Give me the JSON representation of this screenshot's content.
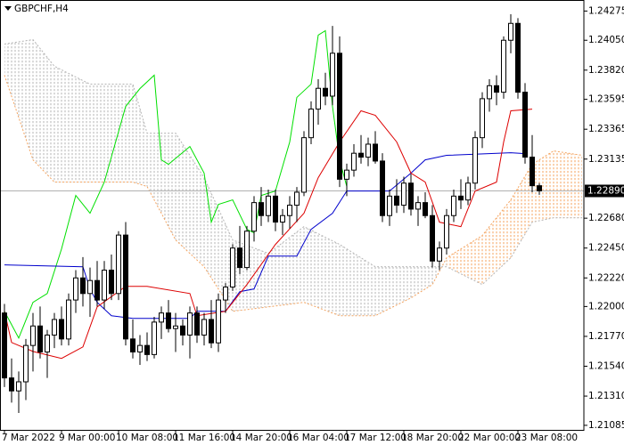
{
  "chart_data": {
    "type": "candlestick",
    "title": "GBPCHF,H4",
    "xlim": [
      -0.625,
      81.25
    ],
    "ylim": [
      1.2105,
      1.2436
    ],
    "xticks": [
      {
        "value": 0,
        "label": "7 Mar 2022"
      },
      {
        "value": 8,
        "label": "9 Mar 00:00"
      },
      {
        "value": 16,
        "label": "10 Mar 08:00"
      },
      {
        "value": 24,
        "label": "11 Mar 16:00"
      },
      {
        "value": 32,
        "label": "14 Mar 20:00"
      },
      {
        "value": 40,
        "label": "16 Mar 04:00"
      },
      {
        "value": 48,
        "label": "17 Mar 12:00"
      },
      {
        "value": 56,
        "label": "18 Mar 20:00"
      },
      {
        "value": 64,
        "label": "22 Mar 00:00"
      },
      {
        "value": 72,
        "label": "23 Mar 08:00"
      }
    ],
    "yticks": [
      1.24275,
      {
        "value": 1.2405,
        "label": "1.24050"
      },
      {
        "value": 1.2382,
        "label": "1.23820"
      },
      1.23595,
      1.23365,
      1.23135,
      {
        "value": 1.2268,
        "label": "1.22680"
      },
      {
        "value": 1.2245,
        "label": "1.22450"
      },
      {
        "value": 1.2222,
        "label": "1.22220"
      },
      {
        "value": 1.22,
        "label": "1.22000"
      },
      {
        "value": 1.2177,
        "label": "1.21770"
      },
      {
        "value": 1.2154,
        "label": "1.21540"
      },
      {
        "value": 1.2131,
        "label": "1.21310"
      },
      1.21085
    ],
    "last_price": {
      "value": 1.2289,
      "label": "1.22890"
    },
    "bull_color": "#ffffff",
    "bear_color": "#000000",
    "open": [
      1.2195,
      1.2145,
      1.2135,
      1.2142,
      1.217,
      1.2185,
      1.2165,
      1.2178,
      1.219,
      1.2175,
      1.2205,
      1.2222,
      1.221,
      1.222,
      1.2205,
      1.2228,
      1.221,
      1.2255,
      1.2175,
      1.2165,
      1.217,
      1.2163,
      1.2188,
      1.2195,
      1.2183,
      1.2185,
      1.2178,
      1.2195,
      1.2178,
      1.219,
      1.2172,
      1.2205,
      1.2215,
      1.2245,
      1.223,
      1.2258,
      1.228,
      1.227,
      1.2285,
      1.2265,
      1.227,
      1.2278,
      1.2288,
      1.233,
      1.2352,
      1.2368,
      1.2362,
      1.2395,
      1.2298,
      1.2305,
      1.2318,
      1.2315,
      1.2325,
      1.2312,
      1.227,
      1.2285,
      1.2278,
      1.2295,
      1.2275,
      1.228,
      1.227,
      1.2235,
      1.2245,
      1.227,
      1.2285,
      1.2282,
      1.2295,
      1.233,
      1.236,
      1.237,
      1.2365,
      1.2405,
      1.2418,
      1.2365,
      1.2315,
      1.2293
    ],
    "high": [
      1.2202,
      1.216,
      1.215,
      1.2175,
      1.2195,
      1.22,
      1.2182,
      1.2195,
      1.22,
      1.221,
      1.2228,
      1.2238,
      1.223,
      1.2235,
      1.2235,
      1.224,
      1.2258,
      1.2265,
      1.219,
      1.2178,
      1.218,
      1.2192,
      1.22,
      1.2205,
      1.2195,
      1.219,
      1.22,
      1.22,
      1.2195,
      1.2205,
      1.221,
      1.2218,
      1.2248,
      1.2262,
      1.2262,
      1.2285,
      1.2292,
      1.229,
      1.229,
      1.2275,
      1.2285,
      1.2292,
      1.2335,
      1.2358,
      1.2375,
      1.238,
      1.2416,
      1.2408,
      1.231,
      1.2325,
      1.2332,
      1.233,
      1.2335,
      1.2318,
      1.229,
      1.2298,
      1.23,
      1.2302,
      1.2285,
      1.2288,
      1.2278,
      1.225,
      1.2275,
      1.229,
      1.2298,
      1.23,
      1.2335,
      1.2365,
      1.2375,
      1.2378,
      1.2408,
      1.2425,
      1.2422,
      1.2372,
      1.2332,
      1.2295
    ],
    "low": [
      1.2138,
      1.2126,
      1.2118,
      1.2128,
      1.215,
      1.216,
      1.2145,
      1.2168,
      1.217,
      1.217,
      1.2195,
      1.22,
      1.2192,
      1.22,
      1.2198,
      1.2205,
      1.2205,
      1.217,
      1.216,
      1.2155,
      1.2158,
      1.216,
      1.2175,
      1.218,
      1.2165,
      1.217,
      1.216,
      1.2172,
      1.217,
      1.2168,
      1.2165,
      1.2195,
      1.2212,
      1.2225,
      1.2228,
      1.225,
      1.2262,
      1.2265,
      1.2258,
      1.2255,
      1.226,
      1.2265,
      1.2285,
      1.2325,
      1.234,
      1.2355,
      1.2355,
      1.2292,
      1.2285,
      1.23,
      1.231,
      1.2308,
      1.231,
      1.2265,
      1.2262,
      1.2272,
      1.2272,
      1.227,
      1.2262,
      1.2268,
      1.223,
      1.2228,
      1.224,
      1.2265,
      1.2275,
      1.2278,
      1.229,
      1.2322,
      1.235,
      1.2355,
      1.236,
      1.2395,
      1.236,
      1.231,
      1.2288,
      1.2286
    ],
    "close": [
      1.2145,
      1.2135,
      1.2142,
      1.217,
      1.2185,
      1.2165,
      1.2178,
      1.219,
      1.2175,
      1.2205,
      1.2222,
      1.221,
      1.222,
      1.2205,
      1.2228,
      1.221,
      1.2255,
      1.2175,
      1.2165,
      1.217,
      1.2163,
      1.2188,
      1.2195,
      1.2183,
      1.2185,
      1.2178,
      1.2195,
      1.2178,
      1.219,
      1.2172,
      1.2205,
      1.2215,
      1.2245,
      1.223,
      1.2258,
      1.228,
      1.227,
      1.2285,
      1.2265,
      1.227,
      1.2278,
      1.2288,
      1.233,
      1.2352,
      1.2368,
      1.2362,
      1.2395,
      1.2298,
      1.2305,
      1.2318,
      1.2315,
      1.2325,
      1.2312,
      1.227,
      1.2285,
      1.2278,
      1.2295,
      1.2275,
      1.228,
      1.227,
      1.2235,
      1.2245,
      1.227,
      1.2285,
      1.2282,
      1.2295,
      1.233,
      1.236,
      1.237,
      1.2365,
      1.2405,
      1.2418,
      1.2365,
      1.2315,
      1.2293,
      1.2289
    ],
    "cloud": {
      "x": [
        0,
        4,
        7,
        12,
        18,
        20,
        24,
        28,
        32,
        37,
        42,
        47,
        52,
        57,
        60,
        62,
        67,
        71,
        74,
        77,
        81
      ],
      "span_a": [
        1.23781,
        1.23129,
        1.22958,
        1.22958,
        1.22958,
        1.22924,
        1.22512,
        1.22306,
        1.21963,
        1.21997,
        1.22032,
        1.21929,
        1.21929,
        1.22066,
        1.22169,
        1.22375,
        1.22546,
        1.22821,
        1.23095,
        1.23198,
        1.23164
      ],
      "span_b": [
        1.24021,
        1.24055,
        1.2385,
        1.23712,
        1.23712,
        1.23335,
        1.23335,
        1.22992,
        1.22512,
        1.22409,
        1.22615,
        1.22478,
        1.22306,
        1.22306,
        1.22306,
        1.22306,
        1.22169,
        1.22375,
        1.22649,
        1.22683,
        1.22683
      ],
      "color_a": "#f4a460",
      "color_b": "#b4b4b4"
    },
    "lines": [
      {
        "color": "#00e000",
        "x": [
          0,
          2,
          4,
          6,
          8,
          10,
          12,
          14,
          17,
          19,
          21,
          22,
          23,
          26,
          28,
          29,
          30,
          32,
          34,
          35,
          36,
          38,
          40,
          41,
          43,
          44,
          45,
          46,
          47,
          48
        ],
        "values": [
          1.21963,
          1.21757,
          1.22032,
          1.221,
          1.22443,
          1.22855,
          1.22718,
          1.22958,
          1.23541,
          1.23678,
          1.23781,
          1.23129,
          1.23095,
          1.23232,
          1.23027,
          1.22649,
          1.22786,
          1.22821,
          1.22594,
          1.22567,
          1.22855,
          1.22889,
          1.23267,
          1.2361,
          1.23712,
          1.2409,
          1.24124,
          1.23541,
          1.23129,
          1.22924
        ]
      },
      {
        "color": "#0000cc",
        "x": [
          0,
          11,
          12,
          13,
          15,
          18,
          26,
          27,
          31,
          33,
          35,
          37,
          41,
          43,
          46,
          48,
          54,
          57,
          59,
          62,
          71,
          73
        ],
        "values": [
          1.2232,
          1.22306,
          1.22135,
          1.22032,
          1.21929,
          1.21908,
          1.21908,
          1.21963,
          1.21963,
          1.22114,
          1.22135,
          1.22388,
          1.22388,
          1.22594,
          1.22718,
          1.22889,
          1.22889,
          1.23027,
          1.23129,
          1.23164,
          1.23184,
          1.23177
        ]
      },
      {
        "color": "#dd0000",
        "x": [
          0,
          1,
          4,
          8,
          11,
          13,
          17,
          20,
          26,
          27,
          31,
          34,
          38,
          42,
          44,
          47,
          50,
          52,
          55,
          57,
          59,
          61,
          64,
          66,
          69,
          70,
          71,
          74
        ],
        "values": [
          1.21963,
          1.21723,
          1.21654,
          1.216,
          1.21689,
          1.21997,
          1.22155,
          1.22155,
          1.221,
          1.21929,
          1.21963,
          1.22169,
          1.22478,
          1.22718,
          1.22992,
          1.23267,
          1.23507,
          1.23472,
          1.23267,
          1.23027,
          1.22958,
          1.22649,
          1.22615,
          1.22889,
          1.22958,
          1.23267,
          1.23507,
          1.2352
        ]
      }
    ]
  }
}
